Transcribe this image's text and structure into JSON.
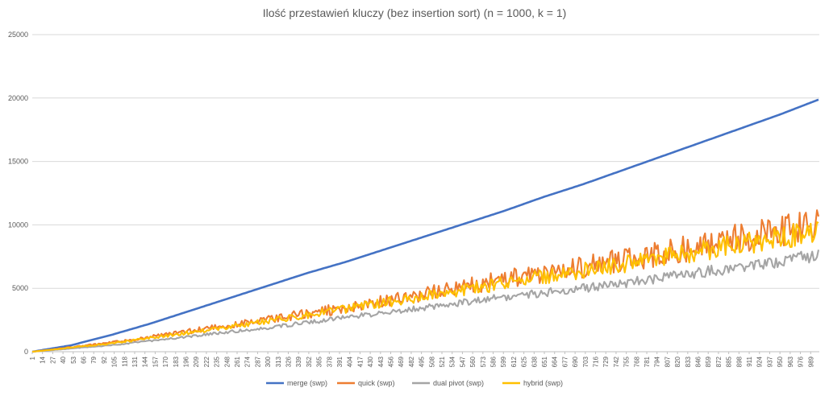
{
  "chart_data": {
    "type": "line",
    "title": "Ilość przestawień kluczy (bez insertion sort) (n = 1000, k = 1)",
    "xlabel": "",
    "ylabel": "",
    "ylim": [
      0,
      25000
    ],
    "y_ticks": [
      "0",
      "5000",
      "10000",
      "15000",
      "20000",
      "25000"
    ],
    "x_range": [
      1,
      1000
    ],
    "x_tick_labels": [
      "1",
      "14",
      "27",
      "40",
      "53",
      "66",
      "79",
      "92",
      "105",
      "118",
      "131",
      "144",
      "157",
      "170",
      "183",
      "196",
      "209",
      "222",
      "235",
      "248",
      "261",
      "274",
      "287",
      "300",
      "313",
      "326",
      "339",
      "352",
      "365",
      "378",
      "391",
      "404",
      "417",
      "430",
      "443",
      "456",
      "469",
      "482",
      "495",
      "508",
      "521",
      "534",
      "547",
      "560",
      "573",
      "586",
      "599",
      "612",
      "625",
      "638",
      "651",
      "664",
      "677",
      "690",
      "703",
      "716",
      "729",
      "742",
      "755",
      "768",
      "781",
      "794",
      "807",
      "820",
      "833",
      "846",
      "859",
      "872",
      "885",
      "898",
      "911",
      "924",
      "937",
      "950",
      "963",
      "976",
      "989"
    ],
    "grid": true,
    "legend_position": "bottom",
    "series": [
      {
        "name": "merge (swp)",
        "color": "#4472C4",
        "x": [
          1,
          50,
          100,
          150,
          200,
          250,
          300,
          350,
          400,
          450,
          500,
          550,
          600,
          650,
          700,
          750,
          800,
          850,
          900,
          950,
          1000
        ],
        "values": [
          0,
          500,
          1300,
          2200,
          3200,
          4200,
          5200,
          6200,
          7100,
          8100,
          9100,
          10100,
          11100,
          12200,
          13200,
          14300,
          15400,
          16500,
          17600,
          18700,
          19900
        ],
        "noise_amplitude": 0
      },
      {
        "name": "quick (swp)",
        "color": "#ED7D31",
        "x": [
          1,
          100,
          200,
          300,
          400,
          500,
          600,
          700,
          800,
          900,
          1000
        ],
        "values": [
          0,
          700,
          1600,
          2500,
          3500,
          4600,
          5700,
          6700,
          7700,
          9000,
          10000
        ],
        "noise_amplitude": 0.13
      },
      {
        "name": "dual pivot (swp)",
        "color": "#A5A5A5",
        "x": [
          1,
          100,
          200,
          300,
          400,
          500,
          600,
          700,
          800,
          900,
          1000
        ],
        "values": [
          0,
          500,
          1200,
          1900,
          2700,
          3500,
          4300,
          5000,
          5800,
          6700,
          7600
        ],
        "noise_amplitude": 0.07
      },
      {
        "name": "hybrid (swp)",
        "color": "#FFC000",
        "x": [
          1,
          100,
          200,
          300,
          400,
          500,
          600,
          700,
          800,
          900,
          1000
        ],
        "values": [
          0,
          650,
          1500,
          2400,
          3400,
          4400,
          5400,
          6400,
          7400,
          8500,
          9500
        ],
        "noise_amplitude": 0.1
      }
    ]
  }
}
